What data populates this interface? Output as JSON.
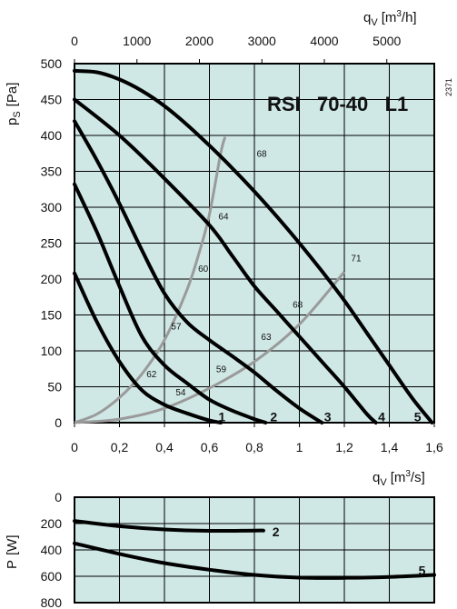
{
  "chart_data": [
    {
      "type": "line",
      "title": "RSI   70-40   L1",
      "code": "2371",
      "xlabel_bottom": "q",
      "xlabel_bottom_sub": "V",
      "xlabel_bottom_unit": "[m",
      "xlabel_bottom_unit_sup": "3",
      "xlabel_bottom_unit_end": "/s]",
      "xlabel_top": "q",
      "xlabel_top_sub": "V",
      "xlabel_top_unit": "[m",
      "xlabel_top_unit_sup": "3",
      "xlabel_top_unit_end": "/h]",
      "ylabel": "p",
      "ylabel_sub": "S",
      "ylabel_unit": "[Pa]",
      "xlim": [
        0,
        1.6
      ],
      "ylim": [
        0,
        500
      ],
      "xticks": [
        0,
        0.2,
        0.4,
        0.6,
        0.8,
        1,
        1.2,
        1.4,
        1.6
      ],
      "xtick_labels": [
        "0",
        "0,2",
        "0,4",
        "0,6",
        "0,8",
        "1",
        "1,2",
        "1,4",
        "1,6"
      ],
      "xticks_top_m3h": [
        0,
        1000,
        2000,
        3000,
        4000,
        5000
      ],
      "xtick_top_labels": [
        "0",
        "1000",
        "2000",
        "3000",
        "4000",
        "5000"
      ],
      "yticks": [
        0,
        50,
        100,
        150,
        200,
        250,
        300,
        350,
        400,
        450,
        500
      ],
      "ytick_labels": [
        "0",
        "50",
        "100",
        "150",
        "200",
        "250",
        "300",
        "350",
        "400",
        "450",
        "500"
      ],
      "grid": true,
      "series": [
        {
          "name": "1",
          "points": [
            [
              0,
              208
            ],
            [
              0.1,
              140
            ],
            [
              0.2,
              85
            ],
            [
              0.3,
              45
            ],
            [
              0.4,
              25
            ],
            [
              0.5,
              13
            ],
            [
              0.6,
              3
            ],
            [
              0.65,
              0
            ]
          ]
        },
        {
          "name": "2",
          "points": [
            [
              0,
              332
            ],
            [
              0.1,
              265
            ],
            [
              0.2,
              190
            ],
            [
              0.3,
              120
            ],
            [
              0.4,
              80
            ],
            [
              0.5,
              55
            ],
            [
              0.6,
              32
            ],
            [
              0.7,
              17
            ],
            [
              0.8,
              5
            ],
            [
              0.85,
              0
            ]
          ]
        },
        {
          "name": "3",
          "points": [
            [
              0,
              420
            ],
            [
              0.1,
              365
            ],
            [
              0.2,
              305
            ],
            [
              0.3,
              240
            ],
            [
              0.4,
              180
            ],
            [
              0.5,
              140
            ],
            [
              0.6,
              115
            ],
            [
              0.7,
              93
            ],
            [
              0.8,
              70
            ],
            [
              0.9,
              44
            ],
            [
              1.0,
              20
            ],
            [
              1.1,
              0
            ]
          ]
        },
        {
          "name": "4",
          "points": [
            [
              0,
              450
            ],
            [
              0.2,
              400
            ],
            [
              0.4,
              340
            ],
            [
              0.6,
              275
            ],
            [
              0.7,
              233
            ],
            [
              0.8,
              190
            ],
            [
              0.9,
              155
            ],
            [
              1.0,
              120
            ],
            [
              1.1,
              85
            ],
            [
              1.2,
              50
            ],
            [
              1.3,
              12
            ],
            [
              1.34,
              0
            ]
          ]
        },
        {
          "name": "5",
          "points": [
            [
              0,
              490
            ],
            [
              0.1,
              488
            ],
            [
              0.2,
              478
            ],
            [
              0.3,
              462
            ],
            [
              0.4,
              441
            ],
            [
              0.5,
              415
            ],
            [
              0.6,
              386
            ],
            [
              0.7,
              355
            ],
            [
              0.8,
              322
            ],
            [
              0.9,
              287
            ],
            [
              1.0,
              250
            ],
            [
              1.1,
              211
            ],
            [
              1.2,
              170
            ],
            [
              1.3,
              125
            ],
            [
              1.4,
              80
            ],
            [
              1.5,
              35
            ],
            [
              1.59,
              0
            ]
          ]
        }
      ],
      "efficiency_curves": [
        {
          "name": "left",
          "points": [
            [
              0,
              0
            ],
            [
              0.1,
              12
            ],
            [
              0.2,
              35
            ],
            [
              0.3,
              68
            ],
            [
              0.4,
              115
            ],
            [
              0.5,
              185
            ],
            [
              0.55,
              232
            ],
            [
              0.6,
              290
            ],
            [
              0.65,
              375
            ],
            [
              0.67,
              398
            ]
          ]
        },
        {
          "name": "right",
          "points": [
            [
              0,
              0
            ],
            [
              0.2,
              5
            ],
            [
              0.4,
              20
            ],
            [
              0.6,
              48
            ],
            [
              0.8,
              85
            ],
            [
              1.0,
              137
            ],
            [
              1.2,
              210
            ]
          ]
        }
      ],
      "efficiency_labels": [
        {
          "text": "68",
          "x": 0.81,
          "y": 370
        },
        {
          "text": "64",
          "x": 0.64,
          "y": 283
        },
        {
          "text": "60",
          "x": 0.55,
          "y": 210
        },
        {
          "text": "57",
          "x": 0.43,
          "y": 130
        },
        {
          "text": "62",
          "x": 0.32,
          "y": 63
        },
        {
          "text": "54",
          "x": 0.45,
          "y": 38
        },
        {
          "text": "59",
          "x": 0.63,
          "y": 70
        },
        {
          "text": "63",
          "x": 0.83,
          "y": 115
        },
        {
          "text": "68",
          "x": 0.97,
          "y": 160
        },
        {
          "text": "71",
          "x": 1.23,
          "y": 225
        }
      ],
      "curve_labels": [
        {
          "text": "1",
          "x": 0.64,
          "y": 2
        },
        {
          "text": "2",
          "x": 0.87,
          "y": 2
        },
        {
          "text": "3",
          "x": 1.11,
          "y": 2
        },
        {
          "text": "4",
          "x": 1.35,
          "y": 2
        },
        {
          "text": "5",
          "x": 1.51,
          "y": 2
        }
      ]
    },
    {
      "type": "line",
      "xlabel": "q",
      "xlabel_sub": "V",
      "xlabel_unit": "[m",
      "xlabel_unit_sup": "3",
      "xlabel_unit_end": "/s]",
      "ylabel": "P",
      "ylabel_unit": "[W]",
      "xlim": [
        0,
        1.6
      ],
      "ylim": [
        800,
        0
      ],
      "yticks": [
        0,
        200,
        400,
        600,
        800
      ],
      "ytick_labels": [
        "0",
        "200",
        "400",
        "600",
        "800"
      ],
      "grid": true,
      "series": [
        {
          "name": "2",
          "points": [
            [
              0,
              180
            ],
            [
              0.2,
              220
            ],
            [
              0.4,
              245
            ],
            [
              0.6,
              255
            ],
            [
              0.8,
              253
            ],
            [
              0.84,
              253
            ]
          ]
        },
        {
          "name": "5",
          "points": [
            [
              0,
              350
            ],
            [
              0.2,
              430
            ],
            [
              0.4,
              500
            ],
            [
              0.6,
              550
            ],
            [
              0.8,
              590
            ],
            [
              1.0,
              610
            ],
            [
              1.2,
              612
            ],
            [
              1.4,
              605
            ],
            [
              1.6,
              590
            ]
          ]
        }
      ],
      "curve_labels": [
        {
          "text": "2",
          "x": 0.88,
          "y": 262
        },
        {
          "text": "5",
          "x": 1.53,
          "y": 555
        }
      ]
    }
  ]
}
